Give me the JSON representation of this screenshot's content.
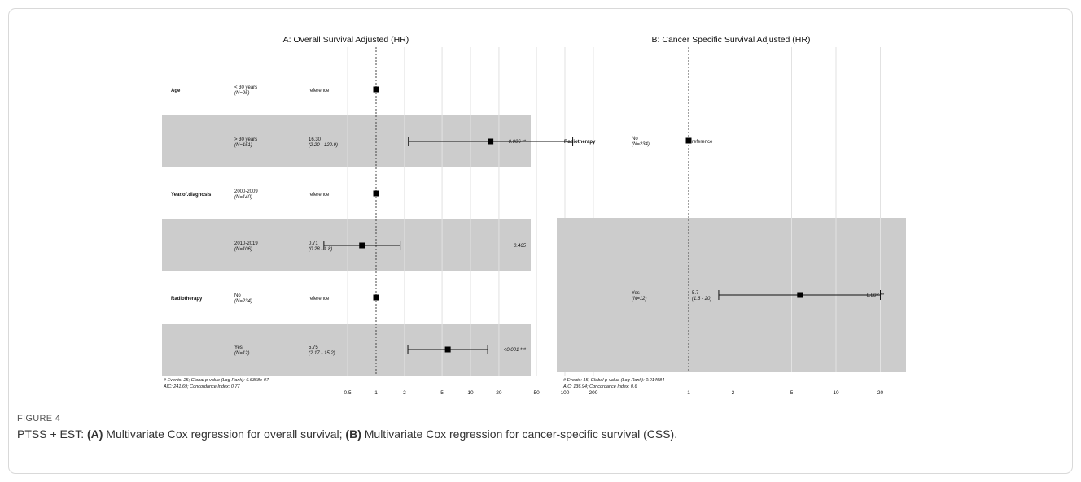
{
  "figure": {
    "label": "FIGURE 4",
    "caption_parts": [
      {
        "text": "PTSS + EST: ",
        "bold": false
      },
      {
        "text": "(A)",
        "bold": true
      },
      {
        "text": " Multivariate Cox regression for overall survival; ",
        "bold": false
      },
      {
        "text": "(B)",
        "bold": true
      },
      {
        "text": " Multivariate Cox regression for cancer-specific survival (CSS).",
        "bold": false
      }
    ]
  },
  "chart_data": [
    {
      "type": "forest",
      "title": "A: Overall Survival Adjusted (HR)",
      "x_scale": "log",
      "reference_line": 1,
      "x_ticks": [
        0.5,
        1,
        2,
        5,
        10,
        20,
        50,
        100,
        200
      ],
      "x_tick_labels": [
        "0.5",
        "1",
        "2",
        "5",
        "10",
        "20",
        "50",
        "100",
        "200"
      ],
      "rows": [
        {
          "variable": "Age",
          "level": "< 30 years",
          "n": "(N=95)",
          "estimate_text": "reference",
          "ci_text": "",
          "hr": 1,
          "lower": null,
          "upper": null,
          "p_text": "",
          "shaded": false
        },
        {
          "variable": "",
          "level": "> 30 years",
          "n": "(N=151)",
          "estimate_text": "16.30",
          "ci_text": "(2.20 - 120.9)",
          "hr": 16.3,
          "lower": 2.2,
          "upper": 120.9,
          "p_text": "0.006 **",
          "shaded": true
        },
        {
          "variable": "Year.of.diagnosis",
          "level": "2000-2009",
          "n": "(N=140)",
          "estimate_text": "reference",
          "ci_text": "",
          "hr": 1,
          "lower": null,
          "upper": null,
          "p_text": "",
          "shaded": false
        },
        {
          "variable": "",
          "level": "2010-2019",
          "n": "(N=106)",
          "estimate_text": "0.71",
          "ci_text": "(0.28 - 1.8)",
          "hr": 0.71,
          "lower": 0.28,
          "upper": 1.8,
          "p_text": "0.465",
          "shaded": true
        },
        {
          "variable": "Radiotherapy",
          "level": "No",
          "n": "(N=234)",
          "estimate_text": "reference",
          "ci_text": "",
          "hr": 1,
          "lower": null,
          "upper": null,
          "p_text": "",
          "shaded": false
        },
        {
          "variable": "",
          "level": "Yes",
          "n": "(N=12)",
          "estimate_text": "5.75",
          "ci_text": "(2.17 - 15.2)",
          "hr": 5.75,
          "lower": 2.17,
          "upper": 15.2,
          "p_text": "<0.001 ***",
          "shaded": true
        }
      ],
      "footnote": [
        "# Events: 25; Global p-value (Log-Rank): 6.6358e-07",
        "AIC: 241.69; Concordance Index: 0.77"
      ]
    },
    {
      "type": "forest",
      "title": "B: Cancer Specific Survival Adjusted (HR)",
      "x_scale": "log",
      "reference_line": 1,
      "x_ticks": [
        1,
        2,
        5,
        10,
        20
      ],
      "x_tick_labels": [
        "1",
        "2",
        "5",
        "10",
        "20"
      ],
      "rows": [
        {
          "variable": "Radiotherapy",
          "level": "No",
          "n": "(N=234)",
          "estimate_text": "reference",
          "ci_text": "",
          "hr": 1,
          "lower": null,
          "upper": null,
          "p_text": "",
          "shaded": false
        },
        {
          "variable": "",
          "level": "Yes",
          "n": "(N=12)",
          "estimate_text": "5.7",
          "ci_text": "(1.6 - 20)",
          "hr": 5.7,
          "lower": 1.6,
          "upper": 20,
          "p_text": "0.007 **",
          "shaded": true
        }
      ],
      "footnote": [
        "# Events: 15; Global p-value (Log-Rank): 0.014584",
        "AIC: 136.94; Concordance Index: 0.6"
      ]
    }
  ]
}
